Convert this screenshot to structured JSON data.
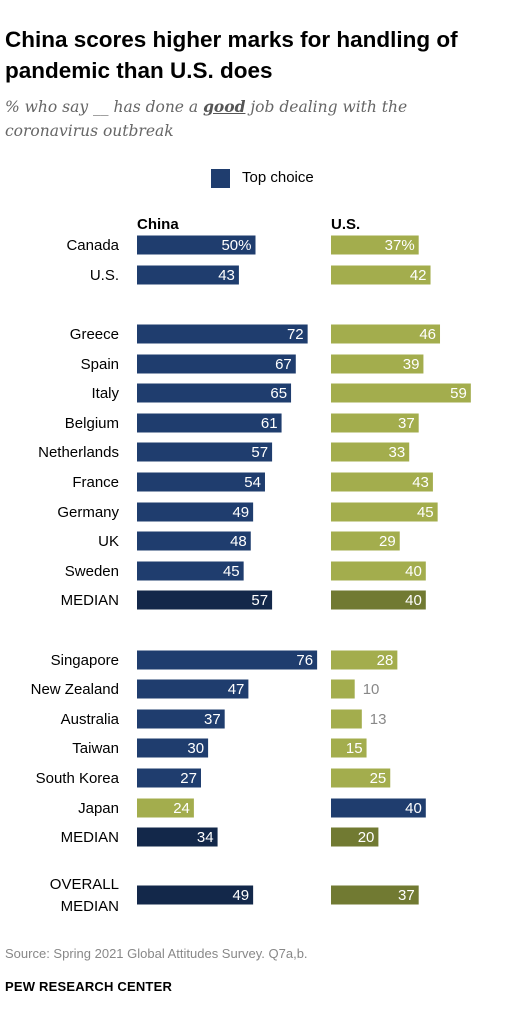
{
  "title": "China scores higher marks for handling of pandemic than U.S. does",
  "subtitle_before": "% who say __ has done a ",
  "subtitle_emphasis": "good",
  "subtitle_after": " job dealing with the coronavirus outbreak",
  "legend_label": "Top choice",
  "source": "Source: Spring 2021 Global Attitudes Survey. Q7a,b.",
  "brand": "PEW RESEARCH CENTER",
  "colors": {
    "top_choice": "#1f3d6e",
    "other": "#a3ad4d",
    "median_china": "#13284a",
    "median_us": "#717a32",
    "text_on_bar": "#ffffff",
    "text_outside": "#888888"
  },
  "chart_data": {
    "type": "bar",
    "orientation": "horizontal",
    "columns": [
      "China",
      "U.S."
    ],
    "xlim": [
      0,
      100
    ],
    "rows": [
      {
        "label": "Canada",
        "china": 50,
        "us": 37,
        "china_text": "50%",
        "us_text": "37%",
        "top": "china"
      },
      {
        "label": "U.S.",
        "china": 43,
        "us": 42,
        "china_text": "43",
        "us_text": "42",
        "top": "china"
      },
      {
        "label": "Greece",
        "china": 72,
        "us": 46,
        "china_text": "72",
        "us_text": "46",
        "top": "china"
      },
      {
        "label": "Spain",
        "china": 67,
        "us": 39,
        "china_text": "67",
        "us_text": "39",
        "top": "china"
      },
      {
        "label": "Italy",
        "china": 65,
        "us": 59,
        "china_text": "65",
        "us_text": "59",
        "top": "china"
      },
      {
        "label": "Belgium",
        "china": 61,
        "us": 37,
        "china_text": "61",
        "us_text": "37",
        "top": "china"
      },
      {
        "label": "Netherlands",
        "china": 57,
        "us": 33,
        "china_text": "57",
        "us_text": "33",
        "top": "china"
      },
      {
        "label": "France",
        "china": 54,
        "us": 43,
        "china_text": "54",
        "us_text": "43",
        "top": "china"
      },
      {
        "label": "Germany",
        "china": 49,
        "us": 45,
        "china_text": "49",
        "us_text": "45",
        "top": "china"
      },
      {
        "label": "UK",
        "china": 48,
        "us": 29,
        "china_text": "48",
        "us_text": "29",
        "top": "china"
      },
      {
        "label": "Sweden",
        "china": 45,
        "us": 40,
        "china_text": "45",
        "us_text": "40",
        "top": "china"
      },
      {
        "label": "MEDIAN",
        "china": 57,
        "us": 40,
        "china_text": "57",
        "us_text": "40",
        "top": "china",
        "median": true
      },
      {
        "label": "Singapore",
        "china": 76,
        "us": 28,
        "china_text": "76",
        "us_text": "28",
        "top": "china"
      },
      {
        "label": "New Zealand",
        "china": 47,
        "us": 10,
        "china_text": "47",
        "us_text": "10",
        "top": "china"
      },
      {
        "label": "Australia",
        "china": 37,
        "us": 13,
        "china_text": "37",
        "us_text": "13",
        "top": "china"
      },
      {
        "label": "Taiwan",
        "china": 30,
        "us": 15,
        "china_text": "30",
        "us_text": "15",
        "top": "china"
      },
      {
        "label": "South Korea",
        "china": 27,
        "us": 25,
        "china_text": "27",
        "us_text": "25",
        "top": "china"
      },
      {
        "label": "Japan",
        "china": 24,
        "us": 40,
        "china_text": "24",
        "us_text": "40",
        "top": "us"
      },
      {
        "label": "MEDIAN",
        "china": 34,
        "us": 20,
        "china_text": "34",
        "us_text": "20",
        "top": "china",
        "median": true
      },
      {
        "label": "OVERALL MEDIAN",
        "label_lines": [
          "OVERALL",
          "MEDIAN"
        ],
        "china": 49,
        "us": 37,
        "china_text": "49",
        "us_text": "37",
        "top": "china",
        "median": true
      }
    ]
  }
}
